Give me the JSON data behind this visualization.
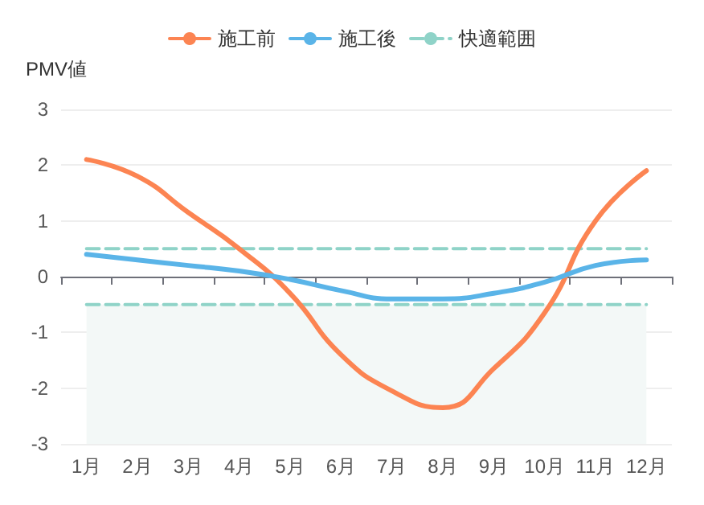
{
  "chart_data": {
    "type": "line",
    "ylabel": "PMV値",
    "categories": [
      "1月",
      "2月",
      "3月",
      "4月",
      "5月",
      "6月",
      "7月",
      "8月",
      "9月",
      "10月",
      "11月",
      "12月"
    ],
    "series": [
      {
        "name": "施工前",
        "color": "#fc8452",
        "values": [
          2.1,
          1.8,
          1.15,
          0.5,
          -0.3,
          -1.4,
          -2.05,
          -2.35,
          -1.65,
          -0.65,
          1.0,
          1.9
        ]
      },
      {
        "name": "施工後",
        "color": "#5ab4e8",
        "values": [
          0.4,
          0.3,
          0.2,
          0.1,
          -0.05,
          -0.25,
          -0.4,
          -0.4,
          -0.3,
          -0.1,
          0.2,
          0.3
        ]
      },
      {
        "name": "快適範囲",
        "color": "#8fd3c8",
        "line_style": "dashed",
        "values": [
          0.5,
          0.5,
          0.5,
          0.5,
          0.5,
          0.5,
          0.5,
          0.5,
          0.5,
          0.5,
          0.5,
          0.5
        ]
      },
      {
        "color": "#8fd3c8",
        "line_style": "dashed",
        "values": [
          -0.5,
          -0.5,
          -0.5,
          -0.5,
          -0.5,
          -0.5,
          -0.5,
          -0.5,
          -0.5,
          -0.5,
          -0.5,
          -0.5
        ]
      }
    ],
    "bands": [
      {
        "axis": "y",
        "from": -3,
        "to": -0.5,
        "color": "#f3f8f7"
      }
    ],
    "ylim": [
      -3,
      3
    ],
    "yticks": [
      -3,
      -2,
      -1,
      0,
      1,
      2,
      3
    ],
    "grid": "y",
    "legend": "top",
    "marker": "none",
    "line_style": "solid"
  }
}
